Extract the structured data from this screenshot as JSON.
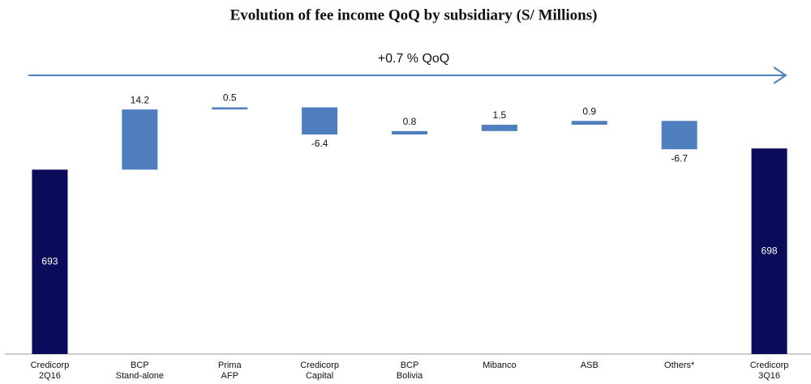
{
  "chart_data": {
    "type": "waterfall",
    "title": "Evolution of fee income QoQ by subsidiary (S/ Millions)",
    "annotation": "+0.7 % QoQ",
    "categories": [
      [
        "Credicorp",
        "2Q16"
      ],
      [
        "BCP",
        "Stand-alone"
      ],
      [
        "Prima",
        "AFP"
      ],
      [
        "Credicorp",
        "Capital"
      ],
      [
        "BCP",
        "Bolivia"
      ],
      [
        "Mibanco"
      ],
      [
        "ASB"
      ],
      [
        "Others*"
      ],
      [
        "Credicorp",
        "3Q16"
      ]
    ],
    "values": [
      693,
      14.2,
      0.5,
      -6.4,
      0.8,
      1.5,
      0.9,
      -6.7,
      698
    ],
    "measure": [
      "total",
      "relative",
      "relative",
      "relative",
      "relative",
      "relative",
      "relative",
      "relative",
      "total"
    ],
    "total_color": "#0b0b5c",
    "delta_color": "#4f7fbf",
    "ylim": [
      649.5,
      712
    ]
  }
}
